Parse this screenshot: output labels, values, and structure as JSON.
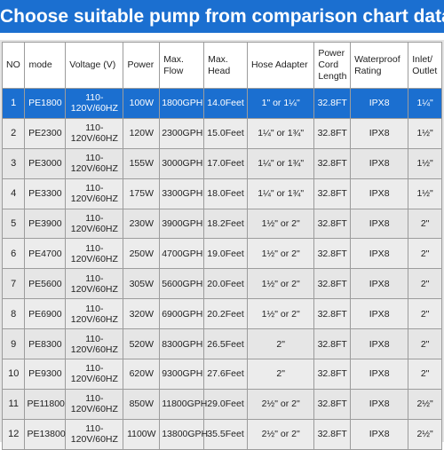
{
  "title": "Choose suitable pump from comparison chart data",
  "columns": [
    "NO",
    "mode",
    "Voltage (V)",
    "Power",
    "Max. Flow",
    "Max. Head",
    "Hose Adapter",
    "Power Cord Length",
    "Waterproof Rating",
    "Inlet/ Outlet"
  ],
  "rows": [
    {
      "no": "1",
      "mode": "PE1800",
      "voltage": "110-120V/60HZ",
      "power": "100W",
      "flow": "1800GPH",
      "head": "14.0Feet",
      "hose": "1\" or 1¼\"",
      "cord": "32.8FT",
      "rating": "IPX8",
      "inlet": "1¼\""
    },
    {
      "no": "2",
      "mode": "PE2300",
      "voltage": "110-120V/60HZ",
      "power": "120W",
      "flow": "2300GPH",
      "head": "15.0Feet",
      "hose": "1¼\" or 1¾\"",
      "cord": "32.8FT",
      "rating": "IPX8",
      "inlet": "1½\""
    },
    {
      "no": "3",
      "mode": "PE3000",
      "voltage": "110-120V/60HZ",
      "power": "155W",
      "flow": "3000GPH",
      "head": "17.0Feet",
      "hose": "1¼\" or 1¾\"",
      "cord": "32.8FT",
      "rating": "IPX8",
      "inlet": "1½\""
    },
    {
      "no": "4",
      "mode": "PE3300",
      "voltage": "110-120V/60HZ",
      "power": "175W",
      "flow": "3300GPH",
      "head": "18.0Feet",
      "hose": "1¼\" or 1¾\"",
      "cord": "32.8FT",
      "rating": "IPX8",
      "inlet": "1½\""
    },
    {
      "no": "5",
      "mode": "PE3900",
      "voltage": "110-120V/60HZ",
      "power": "230W",
      "flow": "3900GPH",
      "head": "18.2Feet",
      "hose": "1½\" or 2\"",
      "cord": "32.8FT",
      "rating": "IPX8",
      "inlet": "2\""
    },
    {
      "no": "6",
      "mode": "PE4700",
      "voltage": "110-120V/60HZ",
      "power": "250W",
      "flow": "4700GPH",
      "head": "19.0Feet",
      "hose": "1½\" or 2\"",
      "cord": "32.8FT",
      "rating": "IPX8",
      "inlet": "2\""
    },
    {
      "no": "7",
      "mode": "PE5600",
      "voltage": "110-120V/60HZ",
      "power": "305W",
      "flow": "5600GPH",
      "head": "20.0Feet",
      "hose": "1½\" or 2\"",
      "cord": "32.8FT",
      "rating": "IPX8",
      "inlet": "2\""
    },
    {
      "no": "8",
      "mode": "PE6900",
      "voltage": "110-120V/60HZ",
      "power": "320W",
      "flow": "6900GPH",
      "head": "20.2Feet",
      "hose": "1½\" or 2\"",
      "cord": "32.8FT",
      "rating": "IPX8",
      "inlet": "2\""
    },
    {
      "no": "9",
      "mode": "PE8300",
      "voltage": "110-120V/60HZ",
      "power": "520W",
      "flow": "8300GPH",
      "head": "26.5Feet",
      "hose": "2\"",
      "cord": "32.8FT",
      "rating": "IPX8",
      "inlet": "2\""
    },
    {
      "no": "10",
      "mode": "PE9300",
      "voltage": "110-120V/60HZ",
      "power": "620W",
      "flow": "9300GPH",
      "head": "27.6Feet",
      "hose": "2\"",
      "cord": "32.8FT",
      "rating": "IPX8",
      "inlet": "2\""
    },
    {
      "no": "11",
      "mode": "PE11800",
      "voltage": "110-120V/60HZ",
      "power": "850W",
      "flow": "11800GPH",
      "head": "29.0Feet",
      "hose": "2½\" or 2\"",
      "cord": "32.8FT",
      "rating": "IPX8",
      "inlet": "2½\""
    },
    {
      "no": "12",
      "mode": "PE13800",
      "voltage": "110-120V/60HZ",
      "power": "1100W",
      "flow": "13800GPH",
      "head": "35.5Feet",
      "hose": "2½\" or 2\"",
      "cord": "32.8FT",
      "rating": "IPX8",
      "inlet": "2½\""
    }
  ],
  "highlight_row": 0,
  "colors": {
    "accent": "#1b6fd0",
    "cell_bg": "#e6e6e6",
    "header_bg": "#ffffff"
  }
}
